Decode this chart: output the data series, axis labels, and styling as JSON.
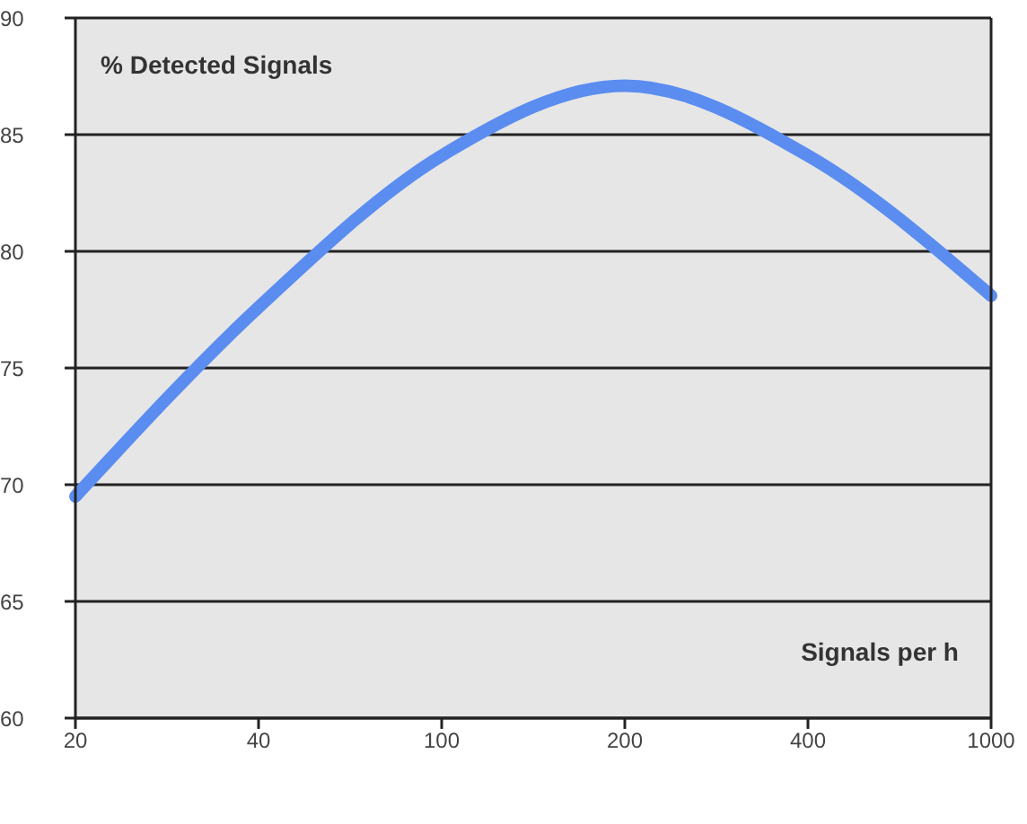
{
  "chart_data": {
    "type": "line",
    "title": "% Detected Signals",
    "xlabel": "Signals per h",
    "categories": [
      "20",
      "40",
      "100",
      "200",
      "400",
      "1000"
    ],
    "series": [
      {
        "color": "#5b8cf0",
        "values": [
          69.5,
          77.6,
          84.1,
          87.1,
          84.1,
          78.1
        ]
      }
    ],
    "ylim": [
      60,
      90
    ],
    "yticks": [
      60,
      65,
      70,
      75,
      80,
      85,
      90
    ],
    "grid": "y",
    "legend": false,
    "marker": "none",
    "line_style": "solid"
  }
}
